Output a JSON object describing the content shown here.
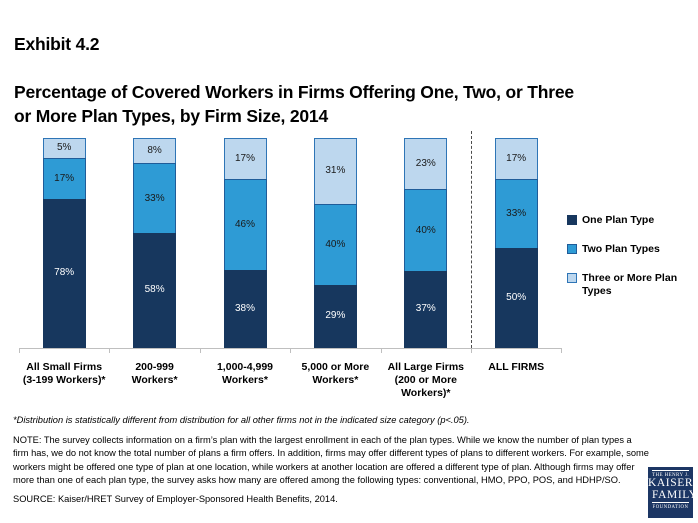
{
  "title": {
    "exhibit": "Exhibit 4.2",
    "main": "Percentage of Covered Workers in Firms Offering One, Two, or Three\nor More Plan Types, by Firm Size, 2014"
  },
  "chart_data": {
    "type": "bar",
    "stacked": true,
    "unit": "%",
    "ylim": [
      0,
      100
    ],
    "grid": false,
    "legend_position": "right",
    "categories": [
      "All Small Firms\n(3-199 Workers)*",
      "200-999\nWorkers*",
      "1,000-4,999\nWorkers*",
      "5,000 or More\nWorkers*",
      "All Large Firms\n(200 or More\nWorkers)*",
      "ALL FIRMS"
    ],
    "series": [
      {
        "name": "One Plan Type",
        "values": [
          78,
          58,
          38,
          29,
          37,
          50
        ],
        "fill": "#17375e",
        "border": "#17375e",
        "label_color": "#ffffff"
      },
      {
        "name": "Two Plan Types",
        "values": [
          17,
          33,
          46,
          40,
          40,
          33
        ],
        "fill": "#2e9bd5",
        "border": "#1f5c99",
        "label_color": "#1a1a1a"
      },
      {
        "name": "Three or More Plan Types",
        "values": [
          5,
          8,
          17,
          31,
          23,
          17
        ],
        "fill": "#bdd7ee",
        "border": "#2e75b6",
        "label_color": "#1a1a1a"
      }
    ],
    "separator_before_category": "ALL FIRMS"
  },
  "footnotes": {
    "star": "*Distribution is statistically different from distribution for all other firms not in the indicated size category (p<.05).",
    "note": "NOTE:  The survey collects information on a firm’s plan with the largest enrollment in each of the plan types. While we know the number of plan types a firm has, we do not know the total number of plans a firm offers. In addition, firms may offer different types of plans to different workers. For example, some workers might be offered one type of plan at one location, while workers at another location are offered a different type of plan.  Although firms may offer more than one of each plan type, the survey asks how many are offered among the following types: conventional, HMO, PPO, POS, and HDHP/SO.",
    "source": "SOURCE: Kaiser/HRET Survey of Employer-Sponsored Health Benefits, 2014."
  },
  "logo": {
    "line1": "THE HENRY J.",
    "line2": "KAISER",
    "line3": "FAMILY",
    "line4": "FOUNDATION",
    "bg_color": "#1c3664"
  },
  "colors": {
    "one_plan": "#17375e",
    "two_plans": "#2e9bd5",
    "three_plus_plans": "#bdd7ee",
    "axis": "#bfbfbf",
    "separator": "#4d4d4d"
  }
}
